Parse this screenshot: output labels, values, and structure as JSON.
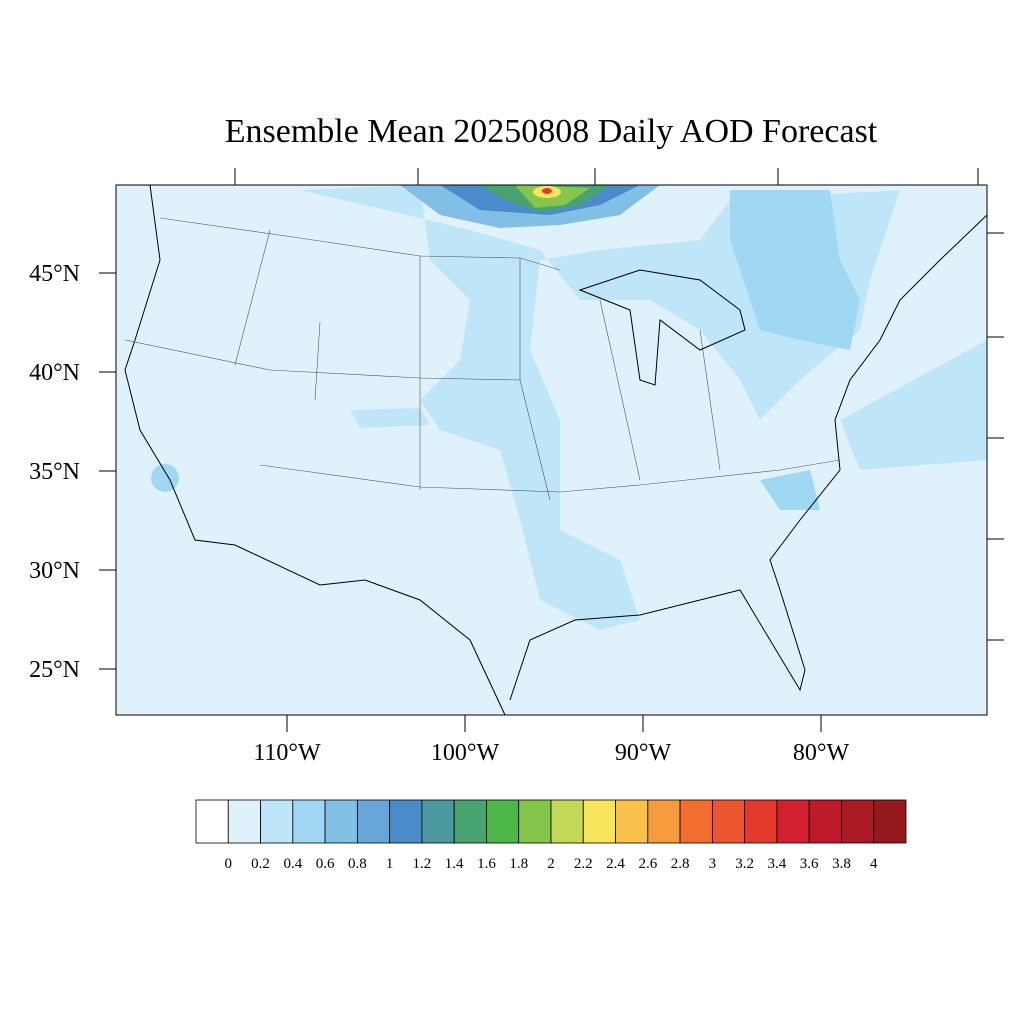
{
  "title": "Ensemble Mean 20250808 Daily AOD Forecast",
  "lat_labels": [
    {
      "value": 45,
      "label": "45°N"
    },
    {
      "value": 40,
      "label": "40°N"
    },
    {
      "value": 35,
      "label": "35°N"
    },
    {
      "value": 30,
      "label": "30°N"
    },
    {
      "value": 25,
      "label": "25°N"
    }
  ],
  "lon_labels": [
    {
      "value": -110,
      "label": "110°W"
    },
    {
      "value": -100,
      "label": "100°W"
    },
    {
      "value": -90,
      "label": "90°W"
    },
    {
      "value": -80,
      "label": "80°W"
    }
  ],
  "colorbar": {
    "levels": [
      0,
      0.2,
      0.4,
      0.6,
      0.8,
      1,
      1.2,
      1.4,
      1.6,
      1.8,
      2,
      2.2,
      2.4,
      2.6,
      2.8,
      3,
      3.2,
      3.4,
      3.6,
      3.8,
      4
    ],
    "colors": [
      "#ffffff",
      "#dff2fb",
      "#bfe6f8",
      "#a0d8f3",
      "#82bfe6",
      "#68a6da",
      "#4a8bc9",
      "#4a9a9f",
      "#47a471",
      "#4db748",
      "#86c54c",
      "#c4d858",
      "#f8e55d",
      "#f9c04b",
      "#f89a3e",
      "#f36d2f",
      "#ec5530",
      "#e3392b",
      "#d22030",
      "#bd1b2a",
      "#a91a22",
      "#941a1e"
    ]
  }
}
